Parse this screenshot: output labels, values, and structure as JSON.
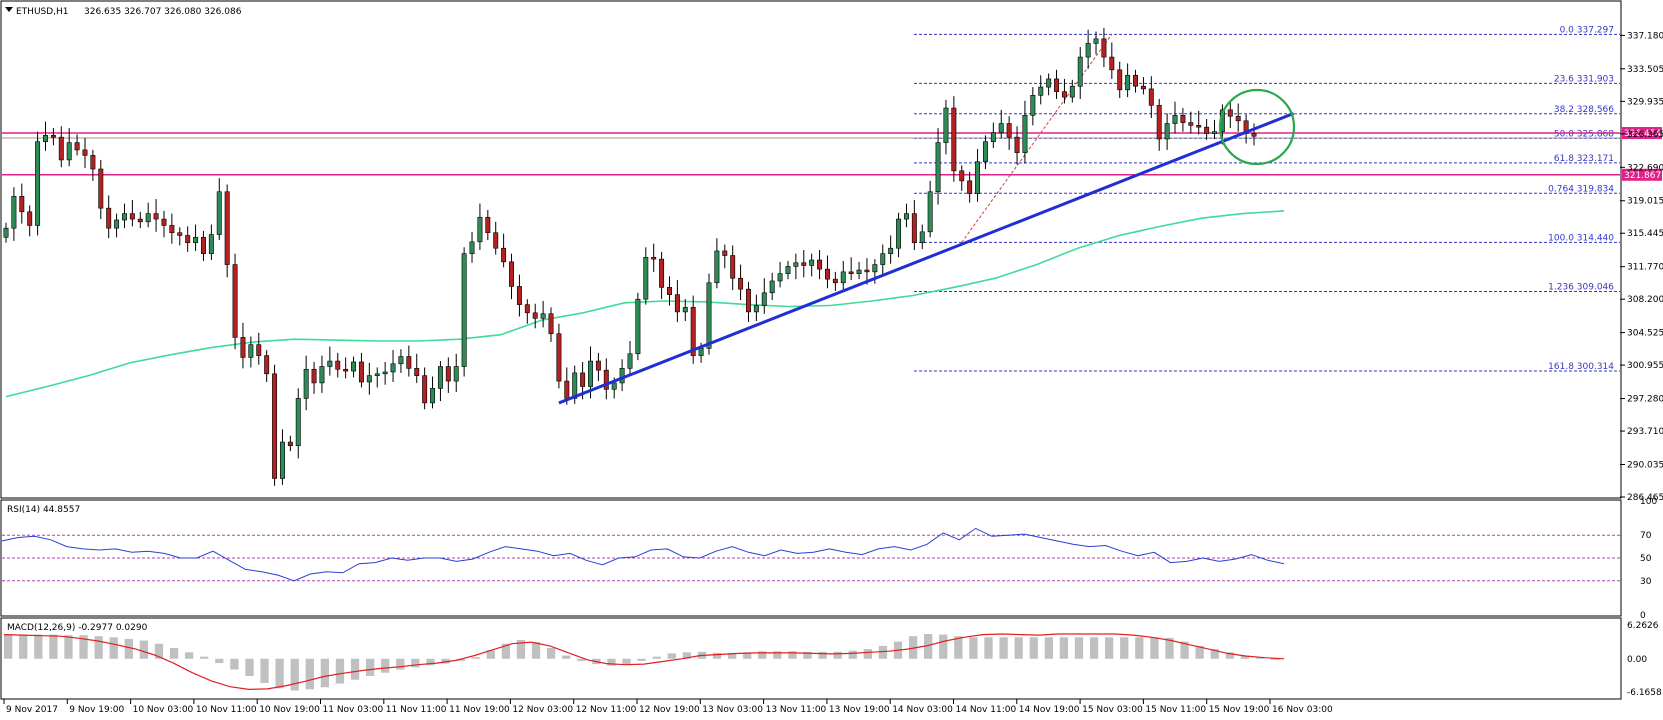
{
  "header": {
    "symbol": "ETHUSD,H1",
    "ohlc": "326.635 326.707 326.080 326.086"
  },
  "colors": {
    "background": "#ffffff",
    "bull_candle": "#2e8b57",
    "bear_candle": "#b22222",
    "wick": "#000000",
    "ma": "#3ddc97",
    "trendline": "#1f2fd4",
    "hline": "#e0218a",
    "fib": "#3636c8",
    "circle": "#2aa84a",
    "rsi": "#2a3fd6",
    "rsi_level": "#b040b0",
    "macd_hist": "#c0c0c0",
    "macd_signal": "#e02020"
  },
  "chart_data": [
    {
      "type": "candlestick",
      "title": "ETHUSD,H1",
      "ylim": [
        286.465,
        340.85
      ],
      "y_ticks": [
        "337.180",
        "333.505",
        "329.935",
        "326.365",
        "322.690",
        "319.015",
        "315.445",
        "311.770",
        "308.200",
        "304.525",
        "300.955",
        "297.280",
        "293.710",
        "290.035",
        "286.465"
      ],
      "x_ticks": [
        "9 Nov 2017",
        "9 Nov 19:00",
        "10 Nov 03:00",
        "10 Nov 11:00",
        "10 Nov 19:00",
        "11 Nov 03:00",
        "11 Nov 11:00",
        "11 Nov 19:00",
        "12 Nov 03:00",
        "12 Nov 11:00",
        "12 Nov 19:00",
        "13 Nov 03:00",
        "13 Nov 11:00",
        "13 Nov 19:00",
        "14 Nov 03:00",
        "14 Nov 11:00",
        "14 Nov 19:00",
        "15 Nov 03:00",
        "15 Nov 11:00",
        "15 Nov 19:00",
        "16 Nov 03:00"
      ],
      "close": [
        316.0,
        319.5,
        317.8,
        316.3,
        325.5,
        326.2,
        326.0,
        323.5,
        325.4,
        324.6,
        324.0,
        322.5,
        318.2,
        316.0,
        316.9,
        317.6,
        317.0,
        316.7,
        317.6,
        317.0,
        316.3,
        315.5,
        315.2,
        314.4,
        315.0,
        313.2,
        315.3,
        320.0,
        312.0,
        304.0,
        301.8,
        303.2,
        302.0,
        300.0,
        288.5,
        292.5,
        292.1,
        297.3,
        300.5,
        299.0,
        300.8,
        301.4,
        300.5,
        300.3,
        301.3,
        299.1,
        299.8,
        300.0,
        300.2,
        301.1,
        301.9,
        300.6,
        299.8,
        296.8,
        298.4,
        300.8,
        299.2,
        300.8,
        313.2,
        314.5,
        317.2,
        315.5,
        313.8,
        312.3,
        309.6,
        307.6,
        306.7,
        306.1,
        306.6,
        304.4,
        299.2,
        297.3,
        300.1,
        298.6,
        301.4,
        300.4,
        298.3,
        299.0,
        300.6,
        302.2,
        308.2,
        312.8,
        312.6,
        309.5,
        308.7,
        306.8,
        307.3,
        302.0,
        302.8,
        310.0,
        313.5,
        313.0,
        310.5,
        309.3,
        306.8,
        307.5,
        308.9,
        310.2,
        311.0,
        311.8,
        312.2,
        311.9,
        312.5,
        311.5,
        310.4,
        310.0,
        311.2,
        311.0,
        311.4,
        311.2,
        312.0,
        313.2,
        313.8,
        317.0,
        317.6,
        314.4,
        315.6,
        320.0,
        325.4,
        329.2,
        322.3,
        321.2,
        319.8,
        323.3,
        325.5,
        326.5,
        327.5,
        326.0,
        324.3,
        328.4,
        330.6,
        331.5,
        332.4,
        331.0,
        330.4,
        331.6,
        334.8,
        336.3,
        336.8,
        334.8,
        333.4,
        331.2,
        332.8,
        331.6,
        331.3,
        329.5,
        325.8,
        327.5,
        328.4,
        327.6,
        327.3,
        327.1,
        326.4,
        326.6,
        329.0,
        328.3,
        327.8,
        326.4,
        326.1
      ],
      "ma_period_line": [
        297.5,
        298.6,
        299.8,
        301.2,
        302.1,
        302.9,
        303.5,
        303.8,
        303.7,
        303.6,
        303.6,
        303.8,
        304.3,
        305.9,
        306.7,
        307.8,
        308.0,
        307.9,
        307.6,
        307.4,
        307.5,
        308.0,
        308.6,
        309.5,
        310.5,
        312.0,
        313.8,
        315.2,
        316.2,
        317.1,
        317.6,
        317.9
      ],
      "horizontal_levels": [
        {
          "value": 321.867,
          "label": "321.867"
        },
        {
          "value": 326.454,
          "label": "326.454"
        }
      ],
      "fib_levels": [
        {
          "label": "0.0 337.297",
          "value": 337.297
        },
        {
          "label": "23.6 331.903",
          "value": 331.903
        },
        {
          "label": "38.2 328.566",
          "value": 328.566
        },
        {
          "label": "50.0 325.868",
          "value": 325.868
        },
        {
          "label": "61.8 323.171",
          "value": 323.171
        },
        {
          "label": "0.764 319.834",
          "value": 319.834
        },
        {
          "label": "100.0 314.440",
          "value": 314.44
        },
        {
          "label": "1.236 309.046",
          "value": 309.046
        },
        {
          "label": "161.8 300.314",
          "value": 300.314
        }
      ],
      "trendline": {
        "from": [
          70,
          296.8
        ],
        "to": [
          163,
          328.6
        ]
      }
    },
    {
      "type": "line",
      "title": "RSI(14) 44.8557",
      "ylim": [
        0,
        100
      ],
      "y_ticks": [
        "100",
        "70",
        "50",
        "30",
        "0"
      ],
      "levels": [
        70,
        50,
        30
      ],
      "values": [
        65,
        68,
        69,
        66,
        60,
        58,
        57,
        58,
        55,
        56,
        54,
        50,
        50,
        56,
        48,
        40,
        38,
        35,
        30,
        36,
        38,
        37,
        45,
        46,
        50,
        48,
        50,
        50,
        47,
        49,
        55,
        60,
        58,
        56,
        52,
        54,
        48,
        44,
        50,
        51,
        57,
        58,
        51,
        50,
        56,
        60,
        55,
        52,
        57,
        54,
        55,
        58,
        55,
        53,
        58,
        60,
        57,
        62,
        72,
        66,
        76,
        69,
        70,
        71,
        68,
        65,
        62,
        60,
        61,
        56,
        52,
        55,
        46,
        47,
        50,
        47,
        49,
        53,
        48,
        45
      ]
    },
    {
      "type": "bar",
      "title": "MACD(12,26,9) -0.2977 0.0290",
      "ylim": [
        -7.3,
        7.4
      ],
      "y_ticks": [
        "6.2626",
        "0.00",
        "-6.1658"
      ],
      "histogram": [
        4.6,
        4.5,
        4.5,
        4.5,
        4.4,
        4.4,
        4.2,
        4.0,
        3.7,
        3.4,
        2.8,
        2.0,
        1.2,
        0.4,
        -0.8,
        -2.0,
        -3.2,
        -4.5,
        -5.5,
        -5.9,
        -5.7,
        -5.3,
        -4.6,
        -3.9,
        -3.2,
        -2.6,
        -2.0,
        -1.6,
        -1.2,
        -0.9,
        -0.4,
        0.3,
        1.6,
        2.8,
        3.5,
        3.1,
        2.0,
        0.6,
        -0.4,
        -1.0,
        -1.3,
        -1.0,
        -0.4,
        0.4,
        1.0,
        1.2,
        1.3,
        1.1,
        1.1,
        1.2,
        1.4,
        1.4,
        1.4,
        1.3,
        1.3,
        1.3,
        1.5,
        1.8,
        2.4,
        3.2,
        4.2,
        4.6,
        4.5,
        4.2,
        4.0,
        4.0,
        4.0,
        4.0,
        4.0,
        4.0,
        4.0,
        4.0,
        4.0,
        4.0,
        4.0,
        4.0,
        4.0,
        3.9,
        3.2,
        2.4,
        1.8,
        1.2,
        0.6,
        0.2,
        -0.2
      ],
      "signal": [
        4.5,
        4.4,
        4.3,
        4.2,
        3.8,
        3.3,
        2.6,
        1.8,
        0.7,
        -0.8,
        -2.6,
        -4.1,
        -5.2,
        -5.7,
        -5.6,
        -5.0,
        -4.2,
        -3.3,
        -2.7,
        -2.2,
        -1.8,
        -1.5,
        -1.1,
        -0.8,
        -0.3,
        0.6,
        1.7,
        2.8,
        3.1,
        2.4,
        1.1,
        -0.2,
        -0.9,
        -1.1,
        -1.0,
        -0.5,
        0.0,
        0.6,
        0.8,
        1.0,
        1.1,
        1.1,
        1.1,
        1.0,
        0.9,
        1.0,
        1.2,
        1.4,
        1.8,
        2.4,
        3.3,
        4.0,
        4.5,
        4.6,
        4.5,
        4.4,
        4.6,
        4.6,
        4.6,
        4.6,
        4.4,
        4.0,
        3.4,
        2.6,
        1.8,
        1.0,
        0.5,
        0.2,
        0.0
      ]
    }
  ]
}
